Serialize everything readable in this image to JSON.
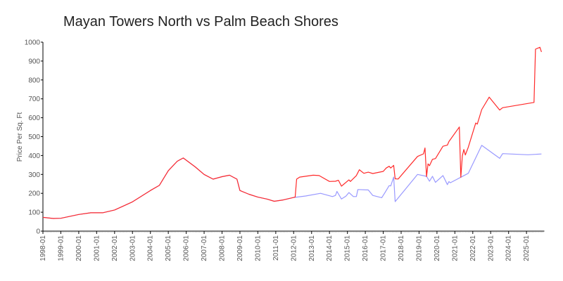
{
  "chart_data": {
    "type": "line",
    "title": "Mayan Towers North vs Palm Beach Shores",
    "ylabel": "Price Per Sq. Ft",
    "xlabel": "",
    "ylim": [
      0,
      1000
    ],
    "xlim": [
      "1998-01",
      "2025-12"
    ],
    "yticks": [
      "0",
      "100",
      "200",
      "300",
      "400",
      "500",
      "600",
      "700",
      "800",
      "900",
      "1000"
    ],
    "xticks": [
      "1998-01",
      "1999-01",
      "2000-01",
      "2001-01",
      "2002-01",
      "2003-01",
      "2004-01",
      "2005-01",
      "2006-01",
      "2007-01",
      "2008-01",
      "2009-01",
      "2010-01",
      "2011-01",
      "2012-01",
      "2013-01",
      "2014-01",
      "2015-01",
      "2016-01",
      "2017-01",
      "2018-01",
      "2019-01",
      "2020-01",
      "2021-01",
      "2022-01",
      "2023-01",
      "2024-01",
      "2025-01"
    ],
    "grid": false,
    "legend": "none",
    "series": [
      {
        "color": "#ff2a2a",
        "points": [
          [
            "1998-01",
            73
          ],
          [
            "1998-08",
            67
          ],
          [
            "1999-01",
            68
          ],
          [
            "2000-01",
            88
          ],
          [
            "2000-09",
            97
          ],
          [
            "2001-05",
            97
          ],
          [
            "2002-01",
            112
          ],
          [
            "2002-07",
            133
          ],
          [
            "2003-01",
            155
          ],
          [
            "2003-07",
            185
          ],
          [
            "2004-01",
            215
          ],
          [
            "2004-07",
            242
          ],
          [
            "2005-01",
            320
          ],
          [
            "2005-07",
            370
          ],
          [
            "2005-11",
            387
          ],
          [
            "2006-07",
            340
          ],
          [
            "2007-01",
            300
          ],
          [
            "2007-07",
            275
          ],
          [
            "2008-01",
            288
          ],
          [
            "2008-06",
            296
          ],
          [
            "2008-11",
            275
          ],
          [
            "2009-01",
            215
          ],
          [
            "2009-07",
            195
          ],
          [
            "2010-01",
            180
          ],
          [
            "2010-07",
            170
          ],
          [
            "2010-12",
            158
          ],
          [
            "2011-06",
            165
          ],
          [
            "2012-01",
            178
          ],
          [
            "2012-02",
            180
          ],
          [
            "2012-03",
            275
          ],
          [
            "2012-05",
            286
          ],
          [
            "2013-02",
            296
          ],
          [
            "2013-06",
            294
          ],
          [
            "2014-01",
            263
          ],
          [
            "2014-05",
            264
          ],
          [
            "2014-07",
            269
          ],
          [
            "2014-09",
            238
          ],
          [
            "2015-02",
            271
          ],
          [
            "2015-03",
            263
          ],
          [
            "2015-07",
            294
          ],
          [
            "2015-09",
            325
          ],
          [
            "2015-12",
            306
          ],
          [
            "2016-03",
            312
          ],
          [
            "2016-06",
            305
          ],
          [
            "2017-01",
            316
          ],
          [
            "2017-03",
            334
          ],
          [
            "2017-05",
            343
          ],
          [
            "2017-06",
            334
          ],
          [
            "2017-08",
            348
          ],
          [
            "2017-09",
            277
          ],
          [
            "2017-11",
            276
          ],
          [
            "2018-12",
            395
          ],
          [
            "2019-04",
            409
          ],
          [
            "2019-05",
            440
          ],
          [
            "2019-06",
            289
          ],
          [
            "2019-07",
            356
          ],
          [
            "2019-08",
            346
          ],
          [
            "2019-10",
            380
          ],
          [
            "2019-12",
            384
          ],
          [
            "2020-05",
            449
          ],
          [
            "2020-08",
            455
          ],
          [
            "2020-09",
            474
          ],
          [
            "2021-04",
            551
          ],
          [
            "2021-05",
            285
          ],
          [
            "2021-06",
            399
          ],
          [
            "2021-07",
            432
          ],
          [
            "2021-08",
            403
          ],
          [
            "2021-10",
            444
          ],
          [
            "2022-03",
            572
          ],
          [
            "2022-04",
            566
          ],
          [
            "2022-07",
            643
          ],
          [
            "2022-12",
            709
          ],
          [
            "2023-07",
            641
          ],
          [
            "2023-09",
            653
          ],
          [
            "2025-06",
            681
          ],
          [
            "2025-07",
            963
          ],
          [
            "2025-10",
            973
          ],
          [
            "2025-11",
            948
          ]
        ]
      },
      {
        "color": "#9999ff",
        "points": [
          [
            "1998-01",
            73
          ],
          [
            "1998-08",
            67
          ],
          [
            "1999-01",
            68
          ],
          [
            "2000-01",
            88
          ],
          [
            "2000-09",
            97
          ],
          [
            "2001-05",
            97
          ],
          [
            "2002-01",
            112
          ],
          [
            "2002-07",
            133
          ],
          [
            "2003-01",
            155
          ],
          [
            "2003-07",
            185
          ],
          [
            "2004-01",
            215
          ],
          [
            "2004-07",
            242
          ],
          [
            "2005-01",
            320
          ],
          [
            "2005-07",
            370
          ],
          [
            "2005-11",
            387
          ],
          [
            "2006-07",
            340
          ],
          [
            "2007-01",
            300
          ],
          [
            "2007-07",
            275
          ],
          [
            "2008-01",
            288
          ],
          [
            "2008-06",
            296
          ],
          [
            "2008-11",
            275
          ],
          [
            "2009-01",
            215
          ],
          [
            "2009-07",
            195
          ],
          [
            "2010-01",
            180
          ],
          [
            "2010-07",
            170
          ],
          [
            "2010-12",
            158
          ],
          [
            "2011-06",
            165
          ],
          [
            "2012-01",
            178
          ],
          [
            "2012-03",
            180
          ],
          [
            "2012-09",
            186
          ],
          [
            "2013-07",
            200
          ],
          [
            "2014-03",
            183
          ],
          [
            "2014-05",
            189
          ],
          [
            "2014-06",
            210
          ],
          [
            "2014-09",
            170
          ],
          [
            "2014-12",
            185
          ],
          [
            "2015-02",
            204
          ],
          [
            "2015-05",
            183
          ],
          [
            "2015-07",
            183
          ],
          [
            "2015-08",
            220
          ],
          [
            "2016-03",
            218
          ],
          [
            "2016-06",
            189
          ],
          [
            "2016-12",
            177
          ],
          [
            "2017-02",
            202
          ],
          [
            "2017-05",
            241
          ],
          [
            "2017-06",
            239
          ],
          [
            "2017-08",
            286
          ],
          [
            "2017-09",
            156
          ],
          [
            "2018-12",
            300
          ],
          [
            "2019-06",
            290
          ],
          [
            "2019-08",
            264
          ],
          [
            "2019-10",
            290
          ],
          [
            "2019-12",
            258
          ],
          [
            "2020-05",
            294
          ],
          [
            "2020-08",
            246
          ],
          [
            "2020-09",
            262
          ],
          [
            "2020-10",
            256
          ],
          [
            "2021-05",
            285
          ],
          [
            "2021-10",
            306
          ],
          [
            "2022-07",
            454
          ],
          [
            "2023-07",
            385
          ],
          [
            "2023-09",
            410
          ],
          [
            "2025-02",
            404
          ],
          [
            "2025-11",
            408
          ]
        ]
      }
    ]
  }
}
